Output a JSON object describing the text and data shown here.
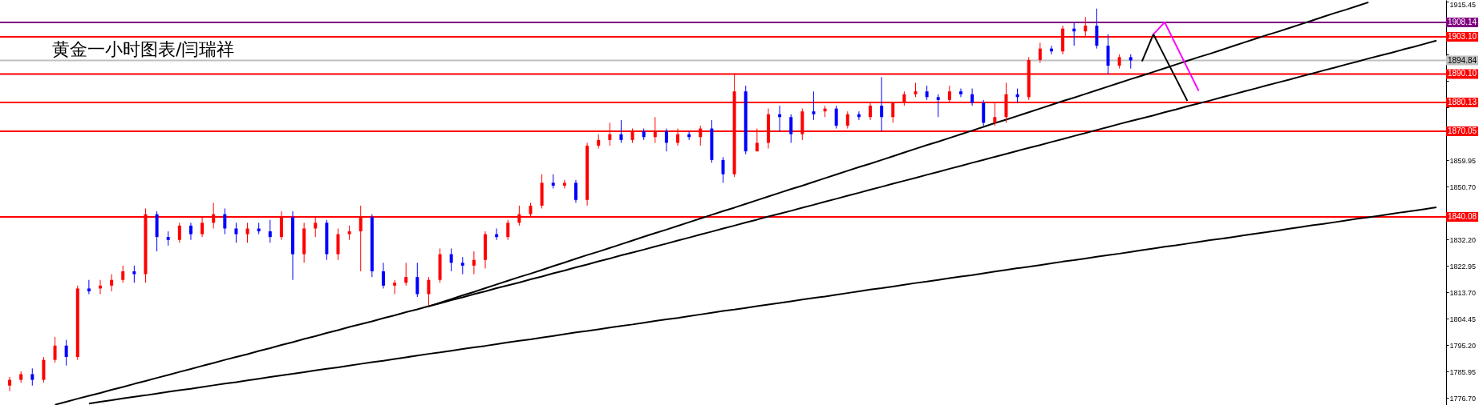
{
  "chart_data": {
    "type": "candlestick",
    "title": "黄金一小时图表/闫瑞祥",
    "tick_labels": "y",
    "categories": [
      null,
      null,
      null,
      null,
      null,
      null,
      null,
      null,
      null,
      null,
      null,
      null,
      null,
      null,
      null,
      null,
      null,
      null,
      null,
      null,
      null,
      null,
      null,
      null,
      null,
      null,
      null,
      null,
      null,
      null,
      null,
      null,
      null,
      null,
      null,
      null,
      null,
      null,
      null,
      null,
      null,
      null,
      null,
      null,
      null,
      null,
      null,
      null,
      null,
      null,
      null,
      null,
      null,
      null,
      null,
      null,
      null,
      null,
      null,
      null,
      null,
      null,
      null,
      null,
      null,
      null,
      null,
      null,
      null,
      null,
      null,
      null,
      null,
      null,
      null,
      null,
      null,
      null,
      null,
      null,
      null,
      null,
      null,
      null,
      null,
      null,
      null,
      null,
      null,
      null,
      null,
      null,
      null,
      null,
      null,
      null,
      null,
      null,
      null,
      null,
      null,
      null,
      null,
      null,
      null,
      null,
      null,
      null,
      null,
      null,
      null,
      null,
      null,
      null,
      null,
      null,
      null,
      null,
      null,
      null,
      null,
      null,
      null,
      null,
      null,
      null,
      null
    ],
    "ohlc": [
      [
        1781,
        1784,
        1779,
        1783
      ],
      [
        1783,
        1786,
        1782,
        1785
      ],
      [
        1785,
        1787,
        1781,
        1783
      ],
      [
        1783,
        1791,
        1782,
        1790
      ],
      [
        1790,
        1798,
        1789,
        1795
      ],
      [
        1795,
        1797,
        1788,
        1791
      ],
      [
        1791,
        1816,
        1790,
        1815
      ],
      [
        1815,
        1818,
        1813,
        1814
      ],
      [
        1815,
        1818,
        1813,
        1816
      ],
      [
        1816,
        1820,
        1814,
        1818
      ],
      [
        1818,
        1823,
        1817,
        1821
      ],
      [
        1821,
        1823,
        1817,
        1820
      ],
      [
        1820,
        1843,
        1817,
        1841
      ],
      [
        1841,
        1842,
        1828,
        1833
      ],
      [
        1833,
        1835,
        1830,
        1832
      ],
      [
        1832,
        1838,
        1831,
        1837
      ],
      [
        1837,
        1838,
        1832,
        1834
      ],
      [
        1834,
        1840,
        1833,
        1838
      ],
      [
        1838,
        1845,
        1836,
        1841
      ],
      [
        1841,
        1843,
        1834,
        1836
      ],
      [
        1836,
        1838,
        1831,
        1834
      ],
      [
        1834,
        1838,
        1831,
        1836
      ],
      [
        1836,
        1838,
        1834,
        1835
      ],
      [
        1835,
        1839,
        1831,
        1833
      ],
      [
        1833,
        1842,
        1832,
        1840
      ],
      [
        1840,
        1842,
        1818,
        1827
      ],
      [
        1827,
        1838,
        1824,
        1836
      ],
      [
        1836,
        1840,
        1833,
        1838
      ],
      [
        1838,
        1839,
        1825,
        1827
      ],
      [
        1827,
        1836,
        1825,
        1834
      ],
      [
        1834,
        1837,
        1832,
        1835
      ],
      [
        1835,
        1844,
        1821,
        1840
      ],
      [
        1840,
        1841,
        1819,
        1821
      ],
      [
        1821,
        1824,
        1815,
        1816
      ],
      [
        1816,
        1818,
        1813,
        1817
      ],
      [
        1817,
        1824,
        1816,
        1819
      ],
      [
        1819,
        1824,
        1812,
        1813
      ],
      [
        1813,
        1819,
        1809,
        1818
      ],
      [
        1818,
        1829,
        1817,
        1827
      ],
      [
        1827,
        1829,
        1821,
        1824
      ],
      [
        1824,
        1826,
        1820,
        1823
      ],
      [
        1823,
        1828,
        1820,
        1825
      ],
      [
        1825,
        1835,
        1822,
        1834
      ],
      [
        1834,
        1836,
        1832,
        1833
      ],
      [
        1833,
        1839,
        1832,
        1838
      ],
      [
        1838,
        1844,
        1837,
        1841
      ],
      [
        1841,
        1845,
        1840,
        1844
      ],
      [
        1844,
        1855,
        1843,
        1852
      ],
      [
        1852,
        1855,
        1850,
        1851
      ],
      [
        1851,
        1853,
        1850,
        1852
      ],
      [
        1852,
        1853,
        1845,
        1846
      ],
      [
        1846,
        1866,
        1844,
        1865
      ],
      [
        1865,
        1869,
        1864,
        1867
      ],
      [
        1867,
        1873,
        1865,
        1869
      ],
      [
        1869,
        1874,
        1866,
        1867
      ],
      [
        1867,
        1871,
        1866,
        1870
      ],
      [
        1870,
        1871,
        1867,
        1868
      ],
      [
        1868,
        1875,
        1866,
        1870
      ],
      [
        1870,
        1871,
        1863,
        1866
      ],
      [
        1866,
        1871,
        1865,
        1869
      ],
      [
        1869,
        1870,
        1867,
        1868
      ],
      [
        1868,
        1872,
        1865,
        1871
      ],
      [
        1871,
        1874,
        1859,
        1860
      ],
      [
        1860,
        1861,
        1852,
        1855
      ],
      [
        1855,
        1890,
        1854,
        1884
      ],
      [
        1884,
        1886,
        1862,
        1863
      ],
      [
        1863,
        1871,
        1863,
        1866
      ],
      [
        1866,
        1878,
        1864,
        1876
      ],
      [
        1876,
        1879,
        1870,
        1875
      ],
      [
        1875,
        1876,
        1866,
        1869
      ],
      [
        1869,
        1878,
        1867,
        1877
      ],
      [
        1877,
        1884,
        1874,
        1876
      ],
      [
        1877,
        1879,
        1875,
        1878
      ],
      [
        1878,
        1879,
        1871,
        1872
      ],
      [
        1872,
        1877,
        1871,
        1876
      ],
      [
        1876,
        1877,
        1874,
        1875
      ],
      [
        1875,
        1880,
        1874,
        1879
      ],
      [
        1879,
        1889,
        1870,
        1875
      ],
      [
        1875,
        1880,
        1873,
        1880
      ],
      [
        1880,
        1884,
        1879,
        1883
      ],
      [
        1883,
        1887,
        1882,
        1884
      ],
      [
        1884,
        1886,
        1881,
        1882
      ],
      [
        1882,
        1883,
        1875,
        1881
      ],
      [
        1881,
        1886,
        1880,
        1884
      ],
      [
        1884,
        1885,
        1882,
        1883
      ],
      [
        1883,
        1885,
        1879,
        1880
      ],
      [
        1880,
        1881,
        1872,
        1873
      ],
      [
        1873,
        1880,
        1872,
        1875
      ],
      [
        1875,
        1887,
        1873,
        1883
      ],
      [
        1883,
        1885,
        1880,
        1882
      ],
      [
        1882,
        1896,
        1881,
        1895
      ],
      [
        1895,
        1901,
        1894,
        1899
      ],
      [
        1899,
        1900,
        1897,
        1898
      ],
      [
        1898,
        1907,
        1897,
        1906
      ],
      [
        1906,
        1908,
        1900,
        1905
      ],
      [
        1905,
        1910,
        1903,
        1907
      ],
      [
        1907,
        1913,
        1899,
        1900
      ],
      [
        1900,
        1904,
        1890,
        1893
      ],
      [
        1893,
        1897,
        1892,
        1896
      ],
      [
        1896,
        1897,
        1892,
        1894.84
      ],
      null,
      null,
      null,
      null,
      null,
      null,
      null,
      null,
      null,
      null,
      null,
      null,
      null,
      null,
      null,
      null,
      null,
      null,
      null,
      null,
      null,
      null,
      null,
      null,
      null,
      null,
      null
    ],
    "colors": [
      "#ff0000",
      "#ff0000",
      "#0000ff",
      "#ff0000",
      "#ff0000",
      "#0000ff",
      "#ff0000",
      "#0000ff",
      "#ff0000",
      "#ff0000",
      "#ff0000",
      "#0000ff",
      "#ff0000",
      "#0000ff",
      "#0000ff",
      "#ff0000",
      "#0000ff",
      "#ff0000",
      "#ff0000",
      "#0000ff",
      "#0000ff",
      "#ff0000",
      "#0000ff",
      "#0000ff",
      "#ff0000",
      "#0000ff",
      "#ff0000",
      "#ff0000",
      "#0000ff",
      "#ff0000",
      "#ff0000",
      "#ff0000",
      "#0000ff",
      "#0000ff",
      "#ff0000",
      "#ff0000",
      "#0000ff",
      "#ff0000",
      "#ff0000",
      "#0000ff",
      "#0000ff",
      "#ff0000",
      "#ff0000",
      "#0000ff",
      "#ff0000",
      "#ff0000",
      "#ff0000",
      "#ff0000",
      "#0000ff",
      "#ff0000",
      "#0000ff",
      "#ff0000",
      "#ff0000",
      "#ff0000",
      "#0000ff",
      "#ff0000",
      "#0000ff",
      "#ff0000",
      "#0000ff",
      "#ff0000",
      "#0000ff",
      "#ff0000",
      "#0000ff",
      "#0000ff",
      "#ff0000",
      "#0000ff",
      "#ff0000",
      "#ff0000",
      "#0000ff",
      "#0000ff",
      "#ff0000",
      "#0000ff",
      "#ff0000",
      "#0000ff",
      "#ff0000",
      "#0000ff",
      "#ff0000",
      "#0000ff",
      "#ff0000",
      "#ff0000",
      "#ff0000",
      "#0000ff",
      "#0000ff",
      "#ff0000",
      "#0000ff",
      "#0000ff",
      "#0000ff",
      "#ff0000",
      "#ff0000",
      "#0000ff",
      "#ff0000",
      "#ff0000",
      "#0000ff",
      "#ff0000",
      "#0000ff",
      "#ff0000",
      "#0000ff",
      "#0000ff",
      "#ff0000",
      "#0000ff",
      null,
      null,
      null,
      null,
      null,
      null,
      null,
      null,
      null,
      null,
      null,
      null,
      null,
      null,
      null,
      null,
      null,
      null,
      null,
      null,
      null,
      null,
      null,
      null,
      null,
      null,
      null
    ],
    "series": [
      {
        "type": "line",
        "color": "#000000",
        "values": [
          null,
          null,
          null,
          null,
          1774.3,
          1775.3,
          1776.4,
          1777.4,
          1778.4,
          1779.5,
          1780.5,
          1781.6,
          1782.6,
          1783.7,
          1784.7,
          1785.8,
          1786.8,
          1787.9,
          1788.9,
          1790.0,
          1791.0,
          1792.0,
          1793.1,
          1794.1,
          1795.2,
          1796.2,
          1797.3,
          1798.3,
          1799.4,
          1800.4,
          1801.5,
          1802.5,
          1803.5,
          1804.6,
          1805.6,
          1806.7,
          1807.7,
          1808.8,
          1809.8,
          1810.9,
          1811.9,
          1813.0,
          1814.0,
          1815.1,
          1816.1,
          1817.1,
          1818.2,
          1819.2,
          1820.3,
          1821.3,
          1822.4,
          1823.4,
          1824.5,
          1825.5,
          1826.6,
          1827.6,
          1828.6,
          1829.7,
          1830.7,
          1831.8,
          1832.8,
          1833.9,
          1834.9,
          1836.0,
          1837.0,
          1838.1,
          1839.1,
          1840.2,
          1841.2,
          1842.2,
          1843.3,
          1844.3,
          1845.4,
          1846.4,
          1847.5,
          1848.5,
          1849.6,
          1850.6,
          1851.7,
          1852.7,
          1853.7,
          1854.8,
          1855.8,
          1856.9,
          1857.9,
          1859.0,
          1860.0,
          1861.1,
          1862.1,
          1863.2,
          1864.2,
          1865.2,
          1866.3,
          1867.3,
          1868.4,
          1869.4,
          1870.5,
          1871.5,
          1872.6,
          1873.6,
          1874.6,
          1875.6,
          1876.7,
          1877.7,
          1878.8,
          1879.8,
          1880.8,
          1881.9,
          1882.9,
          1884.0,
          1885.0,
          1886.1,
          1887.1,
          1888.1,
          1889.2,
          1890.2,
          1891.3,
          1892.3,
          1893.4,
          1894.4,
          1895.5,
          1896.5,
          1897.5,
          1898.6,
          1899.6,
          1900.7,
          1901.8
        ]
      },
      {
        "type": "line",
        "color": "#000000",
        "values": [
          null,
          null,
          null,
          null,
          null,
          null,
          null,
          null,
          null,
          null,
          null,
          null,
          null,
          null,
          null,
          null,
          null,
          null,
          null,
          null,
          null,
          null,
          null,
          null,
          null,
          null,
          null,
          null,
          null,
          null,
          null,
          null,
          null,
          null,
          null,
          null,
          null,
          1808.7,
          1810.0,
          1811.3,
          1812.6,
          1813.8,
          1815.1,
          1816.4,
          1817.7,
          1819.0,
          1820.2,
          1821.5,
          1822.8,
          1824.1,
          1825.4,
          1826.7,
          1827.9,
          1829.2,
          1830.5,
          1831.8,
          1833.1,
          1834.4,
          1835.6,
          1836.9,
          1838.2,
          1839.5,
          1840.8,
          1842.1,
          1843.3,
          1844.6,
          1845.9,
          1847.2,
          1848.5,
          1849.8,
          1851.0,
          1852.3,
          1853.6,
          1854.9,
          1856.2,
          1857.5,
          1858.7,
          1860.0,
          1861.3,
          1862.6,
          1863.9,
          1865.2,
          1866.4,
          1867.7,
          1869.0,
          1870.3,
          1871.6,
          1872.9,
          1874.1,
          1875.4,
          1876.7,
          1878.0,
          1879.3,
          1880.6,
          1881.8,
          1883.1,
          1884.4,
          1885.7,
          1887.0,
          1888.3,
          1889.5,
          1890.8,
          1892.1,
          1893.4,
          1894.7,
          1896.0,
          1897.2,
          1898.5,
          1899.8,
          1901.1,
          1902.4,
          1903.7,
          1904.9,
          1906.2,
          1907.5,
          1908.8,
          1910.1,
          1911.4,
          1912.6,
          1913.9,
          1915.2,
          null,
          null,
          null,
          null,
          null,
          null
        ]
      },
      {
        "type": "line",
        "color": "#000000",
        "values": [
          null,
          null,
          null,
          null,
          null,
          null,
          null,
          1774.7,
          1775.3,
          1775.9,
          1776.5,
          1777.1,
          1777.6,
          1778.2,
          1778.8,
          1779.4,
          1779.9,
          1780.5,
          1781.1,
          1781.7,
          1782.2,
          1782.8,
          1783.4,
          1784.0,
          1784.6,
          1785.1,
          1785.7,
          1786.3,
          1786.9,
          1787.4,
          1788.0,
          1788.6,
          1789.2,
          1789.7,
          1790.3,
          1790.9,
          1791.5,
          1792.1,
          1792.6,
          1793.2,
          1793.8,
          1794.4,
          1794.9,
          1795.5,
          1796.1,
          1796.7,
          1797.2,
          1797.8,
          1798.4,
          1799.0,
          1799.6,
          1800.1,
          1800.7,
          1801.3,
          1801.9,
          1802.4,
          1803.0,
          1803.6,
          1804.2,
          1804.7,
          1805.3,
          1805.9,
          1806.5,
          1807.1,
          1807.6,
          1808.2,
          1808.8,
          1809.4,
          1809.9,
          1810.5,
          1811.1,
          1811.7,
          1812.2,
          1812.8,
          1813.4,
          1814.0,
          1814.6,
          1815.1,
          1815.7,
          1816.3,
          1816.9,
          1817.4,
          1818.0,
          1818.6,
          1819.2,
          1819.7,
          1820.3,
          1820.9,
          1821.5,
          1822.1,
          1822.6,
          1823.2,
          1823.8,
          1824.4,
          1824.9,
          1825.5,
          1826.1,
          1826.7,
          1827.2,
          1827.8,
          1828.4,
          1829.0,
          1829.6,
          1830.1,
          1830.7,
          1831.3,
          1831.9,
          1832.4,
          1833.0,
          1833.6,
          1834.2,
          1834.7,
          1835.3,
          1835.9,
          1836.5,
          1837.1,
          1837.6,
          1838.2,
          1838.8,
          1839.4,
          1839.9,
          1840.5,
          1841.1,
          1841.7,
          1842.2,
          1842.8,
          1843.4
        ]
      },
      {
        "type": "line",
        "color": "#000000",
        "values": [
          null,
          null,
          null,
          null,
          null,
          null,
          null,
          null,
          null,
          null,
          null,
          null,
          null,
          null,
          null,
          null,
          null,
          null,
          null,
          null,
          null,
          null,
          null,
          null,
          null,
          null,
          null,
          null,
          null,
          null,
          null,
          null,
          null,
          null,
          null,
          null,
          null,
          null,
          null,
          null,
          null,
          null,
          null,
          null,
          null,
          null,
          null,
          null,
          null,
          null,
          null,
          null,
          null,
          null,
          null,
          null,
          null,
          null,
          null,
          null,
          null,
          null,
          null,
          null,
          null,
          null,
          null,
          null,
          null,
          null,
          null,
          null,
          null,
          null,
          null,
          null,
          null,
          null,
          null,
          null,
          null,
          null,
          null,
          null,
          null,
          null,
          null,
          null,
          null,
          null,
          null,
          null,
          null,
          null,
          null,
          null,
          null,
          null,
          null,
          null,
          1894.5,
          1904.0,
          1896.2,
          1888.5,
          1880.7,
          null,
          null,
          null,
          null,
          null,
          null,
          null,
          null,
          null,
          null,
          null,
          null,
          null,
          null,
          null,
          null,
          null,
          null,
          null,
          null,
          null,
          null
        ]
      },
      {
        "type": "line",
        "color": "#ff00ff",
        "values": [
          null,
          null,
          null,
          null,
          null,
          null,
          null,
          null,
          null,
          null,
          null,
          null,
          null,
          null,
          null,
          null,
          null,
          null,
          null,
          null,
          null,
          null,
          null,
          null,
          null,
          null,
          null,
          null,
          null,
          null,
          null,
          null,
          null,
          null,
          null,
          null,
          null,
          null,
          null,
          null,
          null,
          null,
          null,
          null,
          null,
          null,
          null,
          null,
          null,
          null,
          null,
          null,
          null,
          null,
          null,
          null,
          null,
          null,
          null,
          null,
          null,
          null,
          null,
          null,
          null,
          null,
          null,
          null,
          null,
          null,
          null,
          null,
          null,
          null,
          null,
          null,
          null,
          null,
          null,
          null,
          null,
          null,
          null,
          null,
          null,
          null,
          null,
          null,
          null,
          null,
          null,
          null,
          null,
          null,
          null,
          null,
          null,
          null,
          null,
          null,
          null,
          1904.0,
          1908.2,
          1900.2,
          1892.2,
          1884.2,
          null,
          null,
          null,
          null,
          null,
          null,
          null,
          null,
          null,
          null,
          null,
          null,
          null,
          null,
          null,
          null,
          null,
          null,
          null,
          null,
          null
        ]
      }
    ],
    "ylim": [
      1774.2,
      1916.0
    ],
    "yticks": [
      1915.45,
      {
        "value": 1896.95,
        "label": null
      },
      {
        "value": 1887.7,
        "label": null
      },
      {
        "value": 1878.45,
        "label": null
      },
      1859.95,
      {
        "value": 1850.7,
        "label": "1850.70"
      },
      {
        "value": 1832.2,
        "label": "1832.20"
      },
      1822.95,
      {
        "value": 1813.7,
        "label": "1813.70"
      },
      1804.45,
      {
        "value": 1795.2,
        "label": "1795.20"
      },
      1785.95,
      {
        "value": 1776.7,
        "label": "1776.70"
      }
    ],
    "ref_lines": [
      {
        "axis": "y",
        "value": 1908.14,
        "label": "1908.14",
        "color": "#800080"
      },
      {
        "axis": "y",
        "value": 1903.1,
        "label": "1903.10",
        "color": "#ff0000"
      },
      {
        "axis": "y",
        "value": 1894.84,
        "label": "1894.84",
        "color": "#c0c0c0"
      },
      {
        "axis": "y",
        "value": 1890.1,
        "label": "1890.10",
        "color": "#ff0000"
      },
      {
        "axis": "y",
        "value": 1880.13,
        "label": "1880.13",
        "color": "#ff0000"
      },
      {
        "axis": "y",
        "value": 1870.05,
        "label": "1870.05",
        "color": "#ff0000"
      },
      {
        "axis": "y",
        "value": 1840.08,
        "label": "1840.08",
        "color": "#ff0000"
      }
    ]
  }
}
